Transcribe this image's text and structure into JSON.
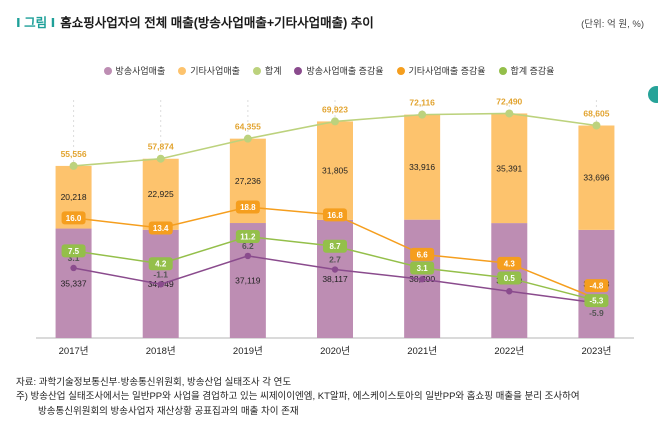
{
  "header": {
    "marker": "Ⅰ 그림 Ⅰ",
    "title": "홈쇼핑사업자의 전체 매출(방송사업매출+기타사업매출) 추이",
    "unit": "(단위: 억 원, %)"
  },
  "legend": [
    {
      "label": "방송사업매출",
      "color": "#bd8db3"
    },
    {
      "label": "기타사업매출",
      "color": "#fdc36d"
    },
    {
      "label": "합계",
      "color": "#bcd27d"
    },
    {
      "label": "방송사업매출 증감율",
      "color": "#8a4b8d"
    },
    {
      "label": "기타사업매출 증감율",
      "color": "#f59e1e"
    },
    {
      "label": "합계 증감율",
      "color": "#94bf4a"
    }
  ],
  "chart_data": {
    "type": "bar",
    "subtype": "stacked-bar-with-lines",
    "categories": [
      "2017년",
      "2018년",
      "2019년",
      "2020년",
      "2021년",
      "2022년",
      "2023년"
    ],
    "bar_series": [
      {
        "name": "방송사업매출",
        "color": "#bd8db3",
        "values": [
          35337,
          34949,
          37119,
          38117,
          38200,
          37099,
          34908
        ]
      },
      {
        "name": "기타사업매출",
        "color": "#fdc36d",
        "values": [
          20218,
          22925,
          27236,
          31805,
          33916,
          35391,
          33696
        ]
      }
    ],
    "total_series": {
      "name": "합계",
      "color": "#bcd27d",
      "label_color": "#e2a430",
      "values": [
        55556,
        57874,
        64355,
        69923,
        72116,
        72490,
        68605
      ]
    },
    "rate_series": [
      {
        "name": "방송사업매출 증감율",
        "color": "#8a4b8d",
        "label_style": "plain",
        "values": [
          3.1,
          -1.1,
          6.2,
          2.7,
          0.2,
          -2.9,
          -5.9
        ]
      },
      {
        "name": "기타사업매출 증감율",
        "color": "#f59e1e",
        "label_style": "badge",
        "values": [
          16.0,
          13.4,
          18.8,
          16.8,
          6.6,
          4.3,
          -4.8
        ]
      },
      {
        "name": "합계 증감율",
        "color": "#94bf4a",
        "label_style": "badge",
        "values": [
          7.5,
          4.2,
          11.2,
          8.7,
          3.1,
          0.5,
          -5.3
        ]
      }
    ],
    "left_axis_max": 82000,
    "grid": "vertical-dashed",
    "legend_position": "top-center"
  },
  "footer": {
    "source": "자료: 과학기술정보통신부·방송통신위원회, 방송산업 실태조사 각 연도",
    "note1": "주) 방송산업 실태조사에서는 일반PP와 사업을 겸업하고 있는 씨제이이엔엠, KT알파, 에스케이스토아의 일반PP와 홈쇼핑 매출을 분리 조사하여",
    "note2": "방송통신위원회의 방송사업자 재산상황 공표집과의 매출 차이 존재"
  }
}
